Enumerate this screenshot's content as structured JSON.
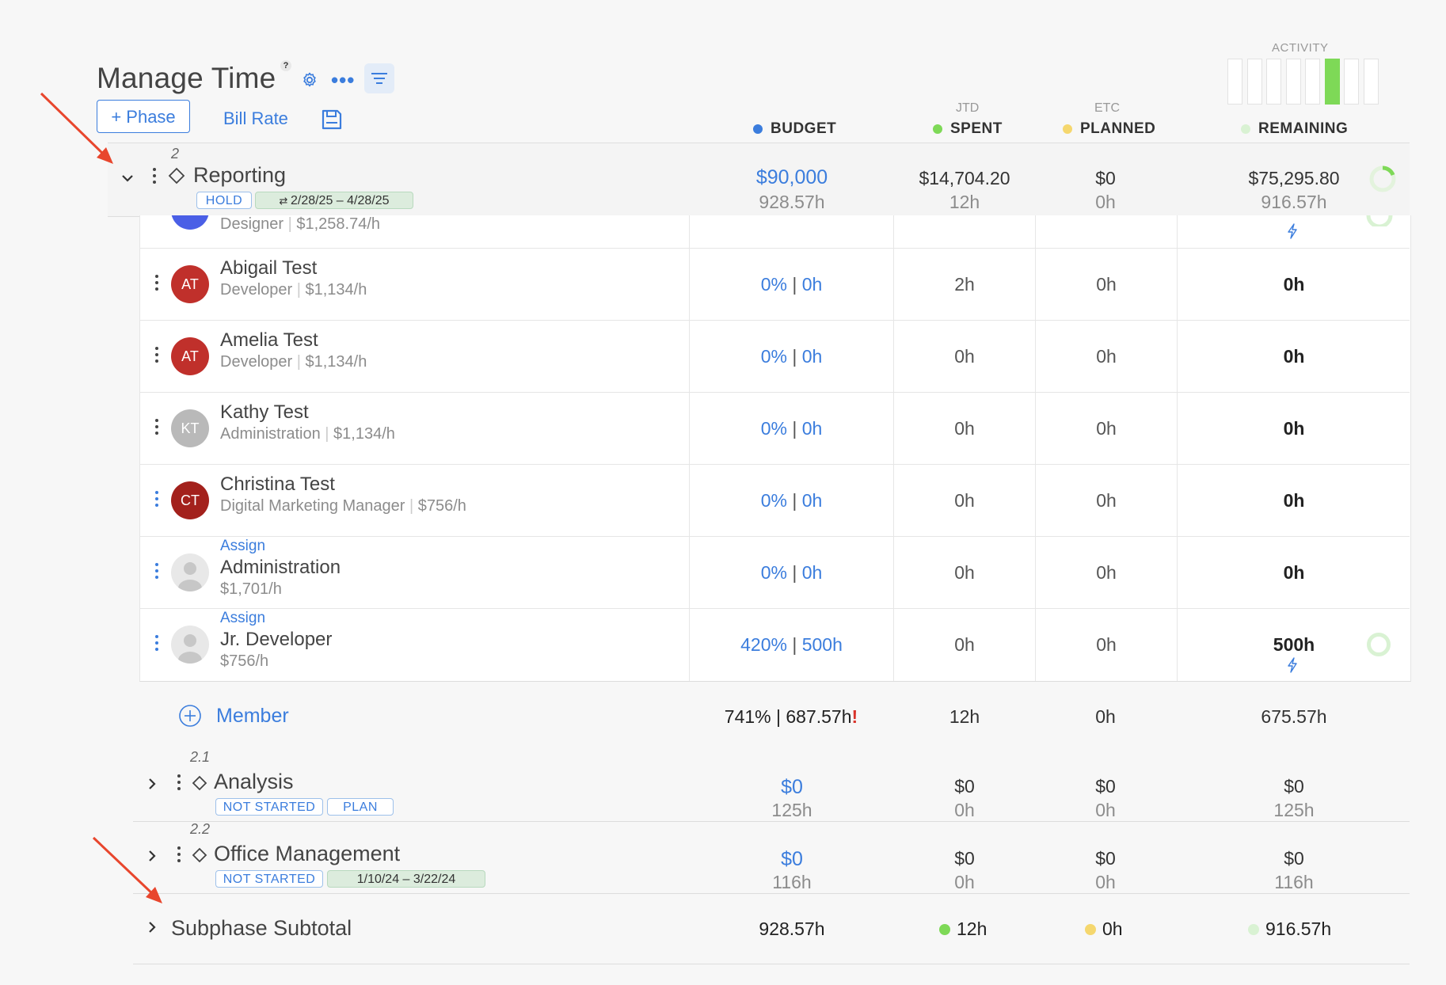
{
  "header": {
    "title": "Manage Time",
    "help": "?",
    "more": "•••",
    "add_phase": "+ Phase",
    "bill_rate": "Bill Rate"
  },
  "activity": {
    "label": "ACTIVITY",
    "bars": 8,
    "active_index": 5,
    "active_color": "#7ed957"
  },
  "columns": {
    "budget": "BUDGET",
    "spent_sup": "JTD",
    "spent": "SPENT",
    "planned_sup": "ETC",
    "planned": "PLANNED",
    "remaining": "REMAINING",
    "colors": {
      "budget": "#3b7ddd",
      "spent": "#7ed957",
      "planned": "#f5d76e",
      "remaining": "#d9f2d3"
    }
  },
  "phase": {
    "number": "2",
    "name": "Reporting",
    "status": "HOLD",
    "dates": "2/28/25  –  4/28/25",
    "budget": "$90,000",
    "budget_hours": "928.57h",
    "spent": "$14,704.20",
    "spent_hours": "12h",
    "planned": "$0",
    "planned_hours": "0h",
    "remaining": "$75,295.80",
    "remaining_hours": "916.57h"
  },
  "partial_row": {
    "role": "Designer",
    "rate": "$1,258.74/h"
  },
  "members": [
    {
      "initials": "AT",
      "name": "Abigail Test",
      "role": "Developer",
      "rate": "$1,134/h",
      "pct": "0%",
      "hrs": "0h",
      "spent": "2h",
      "planned": "0h",
      "remaining": "0h",
      "color": "#c0302b"
    },
    {
      "initials": "AT",
      "name": "Amelia Test",
      "role": "Developer",
      "rate": "$1,134/h",
      "pct": "0%",
      "hrs": "0h",
      "spent": "0h",
      "planned": "0h",
      "remaining": "0h",
      "color": "#c0302b"
    },
    {
      "initials": "KT",
      "name": "Kathy Test",
      "role": "Administration",
      "rate": "$1,134/h",
      "pct": "0%",
      "hrs": "0h",
      "spent": "0h",
      "planned": "0h",
      "remaining": "0h",
      "color": "#b9b9b9"
    },
    {
      "initials": "CT",
      "name": "Christina Test",
      "role": "Digital Marketing Manager",
      "rate": "$756/h",
      "pct": "0%",
      "hrs": "0h",
      "spent": "0h",
      "planned": "0h",
      "remaining": "0h",
      "color": "#a3211c"
    }
  ],
  "unassigned": [
    {
      "assign": "Assign",
      "name": "Administration",
      "rate": "$1,701/h",
      "pct": "0%",
      "hrs": "0h",
      "spent": "0h",
      "planned": "0h",
      "remaining": "0h"
    },
    {
      "assign": "Assign",
      "name": "Jr. Developer",
      "rate": "$756/h",
      "pct": "420%",
      "hrs": "500h",
      "spent": "0h",
      "planned": "0h",
      "remaining": "500h"
    }
  ],
  "member_totals": {
    "add_label": "Member",
    "budget": "741% | 687.57h",
    "warning": "!",
    "spent": "12h",
    "planned": "0h",
    "remaining": "675.57h"
  },
  "subphases": [
    {
      "number": "2.1",
      "name": "Analysis",
      "status": "NOT STARTED",
      "tag": "PLAN",
      "budget": "$0",
      "budget_hours": "125h",
      "spent": "$0",
      "spent_hours": "0h",
      "planned": "$0",
      "planned_hours": "0h",
      "remaining": "$0",
      "remaining_hours": "125h"
    },
    {
      "number": "2.2",
      "name": "Office Management",
      "status": "NOT STARTED",
      "dates": "1/10/24  –  3/22/24",
      "budget": "$0",
      "budget_hours": "116h",
      "spent": "$0",
      "spent_hours": "0h",
      "planned": "$0",
      "planned_hours": "0h",
      "remaining": "$0",
      "remaining_hours": "116h"
    }
  ],
  "subtotal": {
    "label": "Subphase Subtotal",
    "budget": "928.57h",
    "spent": "12h",
    "planned": "0h",
    "remaining": "916.57h"
  },
  "annotation_color": "#e8462d"
}
